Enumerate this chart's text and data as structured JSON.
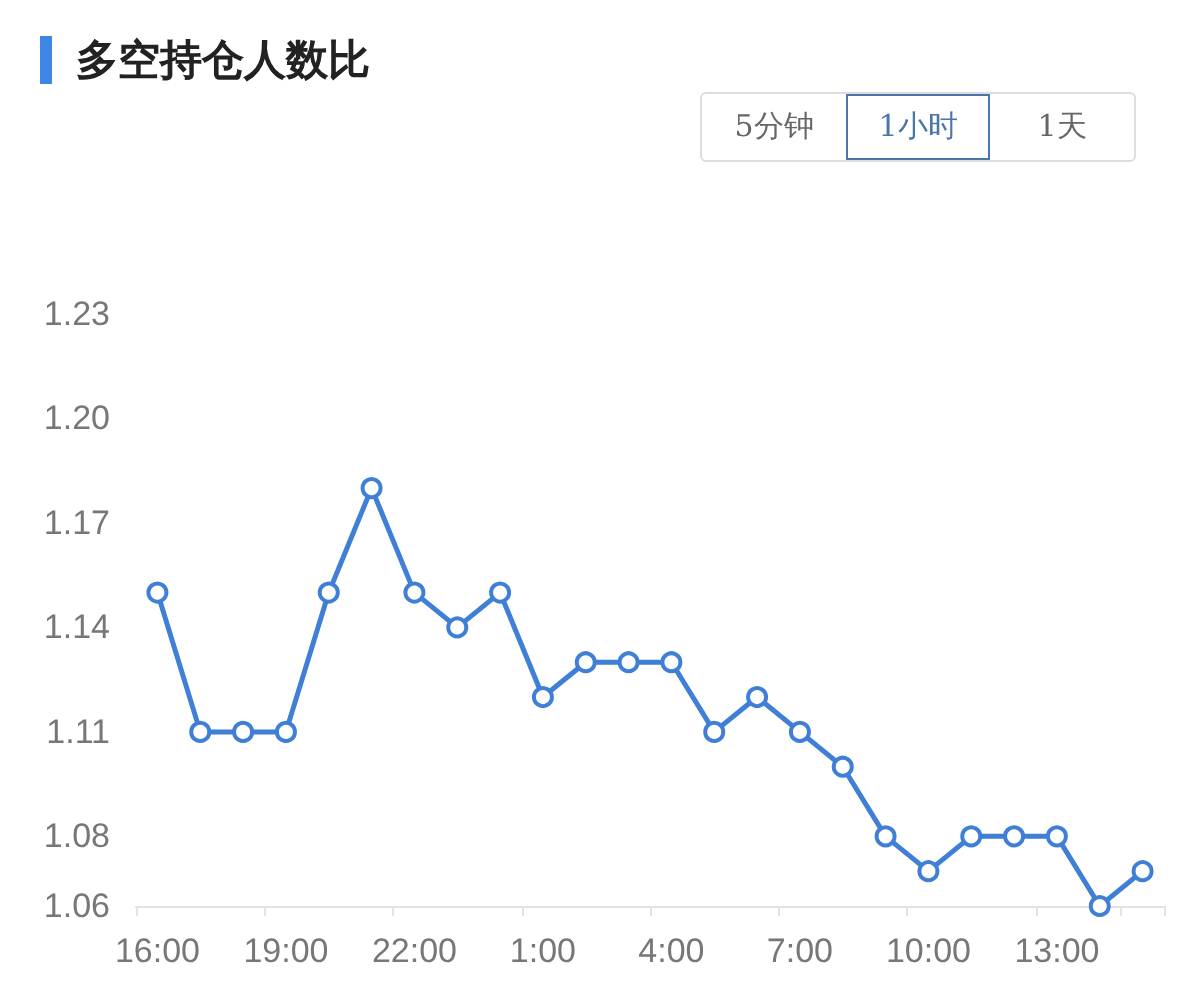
{
  "chart_data": {
    "type": "line",
    "title": "多空持仓人数比",
    "annotations": [
      "5分钟",
      "1小时",
      "1天"
    ],
    "categories": [
      "16:00",
      null,
      null,
      "19:00",
      null,
      null,
      "22:00",
      null,
      null,
      "1:00",
      null,
      null,
      "4:00",
      null,
      null,
      "7:00",
      null,
      null,
      "10:00",
      null,
      null,
      "13:00",
      null,
      null
    ],
    "series": [
      {
        "color": "#3f7fd6",
        "values": [
          1.15,
          1.11,
          1.11,
          1.11,
          1.15,
          1.18,
          1.15,
          1.14,
          1.15,
          1.12,
          1.13,
          1.13,
          1.13,
          1.11,
          1.12,
          1.11,
          1.1,
          1.08,
          1.07,
          1.08,
          1.08,
          1.08,
          1.06,
          1.07
        ]
      }
    ],
    "ylim": [
      1.06,
      1.23
    ],
    "yticks": [
      1.06,
      1.08,
      1.11,
      1.14,
      1.17,
      {
        "value": 1.2,
        "label": "1.20"
      },
      1.23
    ],
    "grid": false,
    "marker": "circle",
    "line_style": "solid"
  }
}
